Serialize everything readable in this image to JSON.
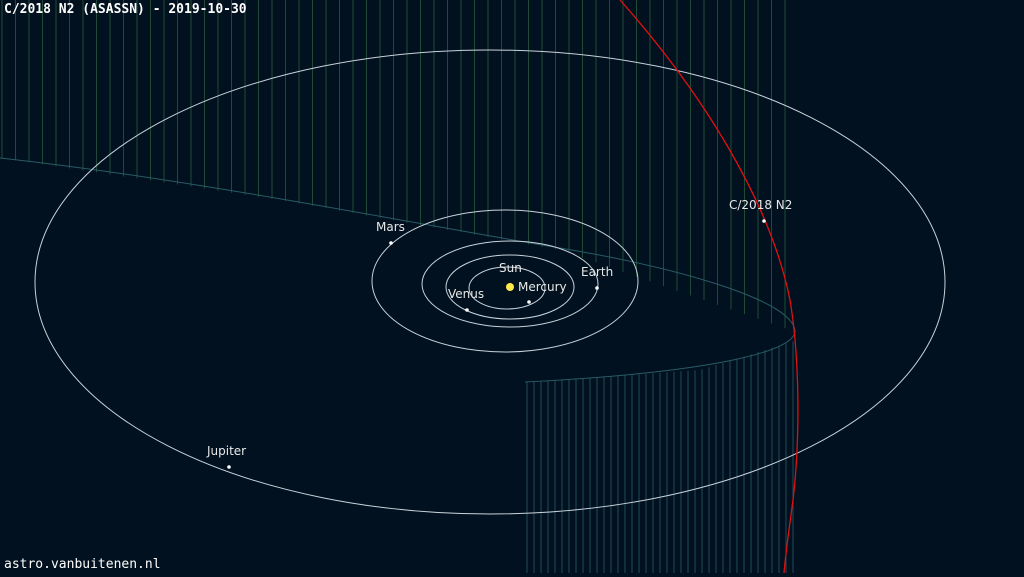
{
  "header": {
    "title": "C/2018 N2 (ASASSN) - 2019-10-30"
  },
  "footer": {
    "credit": "astro.vanbuitenen.nl"
  },
  "colors": {
    "background": "#01111f",
    "orbit": "#c9d2da",
    "comet_orbit": "#e01010",
    "hatch_above": "#1f4a35",
    "hatch_below": "#1f4a5a",
    "sun": "#ffe94a",
    "label": "#e8e8e8"
  },
  "bodies": {
    "sun": "Sun",
    "mercury": "Mercury",
    "venus": "Venus",
    "earth": "Earth",
    "mars": "Mars",
    "jupiter": "Jupiter",
    "comet": "C/2018 N2"
  }
}
